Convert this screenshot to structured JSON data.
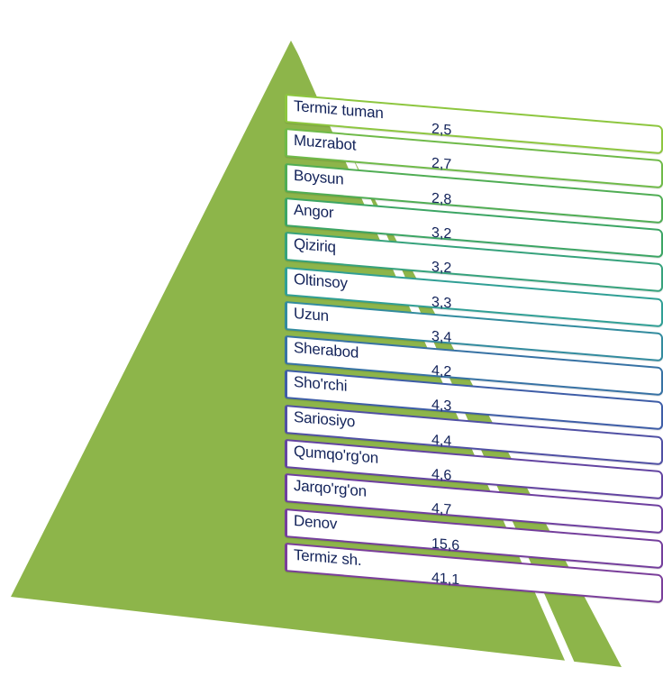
{
  "chart_data": {
    "type": "table",
    "rows": [
      {
        "name": "Termiz tuman",
        "value": "2,5"
      },
      {
        "name": "Muzrabot",
        "value": "2,7"
      },
      {
        "name": "Boysun",
        "value": "2,8"
      },
      {
        "name": "Angor",
        "value": "3,2"
      },
      {
        "name": "Qiziriq",
        "value": "3,2"
      },
      {
        "name": "Oltinsoy",
        "value": "3,3"
      },
      {
        "name": "Uzun",
        "value": "3,4"
      },
      {
        "name": "Sherabod",
        "value": "4,2"
      },
      {
        "name": "Sho'rchi",
        "value": "4,3"
      },
      {
        "name": "Sariosiyo",
        "value": "4,4"
      },
      {
        "name": "Qumqo'rg'on",
        "value": "4,6"
      },
      {
        "name": "Jarqo'rg'on",
        "value": "4,7"
      },
      {
        "name": "Denov",
        "value": "15,6"
      },
      {
        "name": "Termiz sh.",
        "value": "41,1"
      }
    ]
  },
  "colors": {
    "triangle": "#8db54a",
    "row_border_gradient": [
      "#8dc63f",
      "#3ea65a",
      "#2f9e9a",
      "#3a5fa8",
      "#6a3fa0",
      "#7a3e9a"
    ],
    "text": "#13235a"
  }
}
